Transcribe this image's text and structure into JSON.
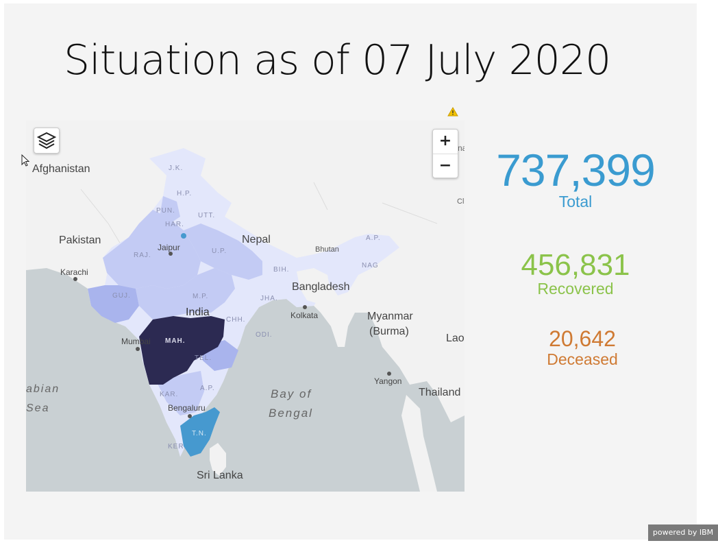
{
  "slide": {
    "title": "Situation as of 07 July 2020"
  },
  "map": {
    "countries": [
      "Afghanistan",
      "Pakistan",
      "Nepal",
      "Bhutan",
      "Bangladesh",
      "India",
      "Myanmar",
      "(Burma)",
      "Lao",
      "Thailand",
      "Sri Lanka",
      "Cl",
      "na"
    ],
    "water": [
      "abian",
      "Sea",
      "Bay of",
      "Bengal"
    ],
    "cities": [
      "Karachi",
      "Jaipur",
      "Kolkata",
      "Mumbai",
      "Bengaluru",
      "Yangon"
    ],
    "states": [
      "J.K.",
      "H.P.",
      "PUN.",
      "HAR.",
      "UTT.",
      "RAJ.",
      "U.P.",
      "BIH.",
      "A.P.",
      "NAG",
      "GUJ.",
      "M.P.",
      "JHA.",
      "CHH.",
      "ODI.",
      "MAH.",
      "TEL.",
      "A.P.",
      "KAR.",
      "T.N.",
      "KER."
    ],
    "controls": {
      "zoom_in": "+",
      "zoom_out": "−"
    },
    "icons": [
      "layers-icon",
      "warning-icon",
      "cursor-icon"
    ],
    "colors": {
      "land": "#f2f2f2",
      "water": "#c9d0d3",
      "shade_light": "#e3e7fb",
      "shade_mid": "#c3cbf4",
      "shade_high": "#a9b4ed",
      "shade_tn": "#4699cf",
      "shade_max": "#2c2a52"
    }
  },
  "stats": {
    "total": {
      "value": "737,399",
      "label": "Total",
      "color": "#3a9bd0"
    },
    "recovered": {
      "value": "456,831",
      "label": "Recovered",
      "color": "#8bc34a"
    },
    "deceased": {
      "value": "20,642",
      "label": "Deceased",
      "color": "#cf7a33"
    }
  },
  "footer": {
    "powered_by": "powered by IBM"
  }
}
